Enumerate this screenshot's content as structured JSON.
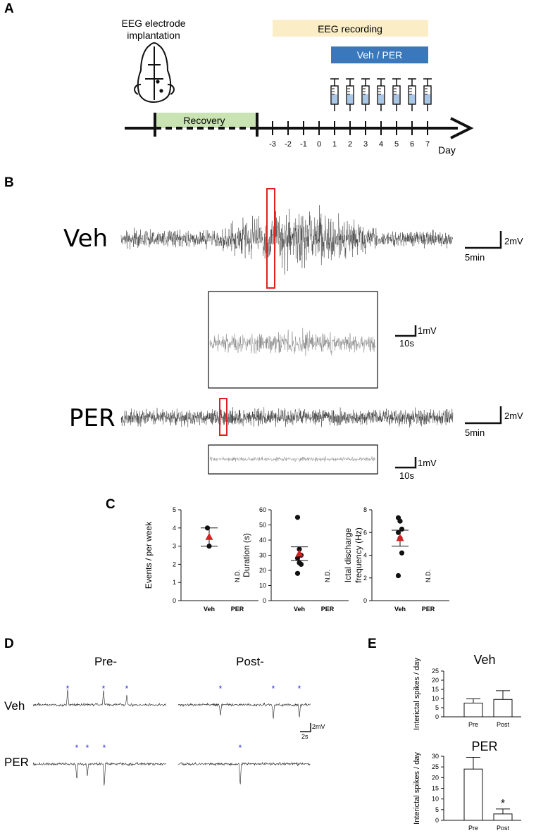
{
  "panel_labels": {
    "a": "A",
    "b": "B",
    "c": "C",
    "d": "D",
    "e": "E"
  },
  "panel_a": {
    "implant_label_line1": "EEG electrode",
    "implant_label_line2": "implantation",
    "recovery_label": "Recovery",
    "recording_label": "EEG recording",
    "treatment_label": "Veh / PER",
    "day_ticks": [
      "-3",
      "-2",
      "-1",
      "0",
      "1",
      "2",
      "3",
      "4",
      "5",
      "6",
      "7"
    ],
    "day_label": "Day",
    "colors": {
      "recovery": "#c9e3b3",
      "recording": "#fbeec7",
      "treatment": "#3b78bb",
      "syringe_fluid": "#a9c8e8"
    }
  },
  "panel_b": {
    "veh_label": "Veh",
    "per_label": "PER",
    "scale_2mv": "2mV",
    "scale_5min": "5min",
    "scale_1mv": "1mV",
    "scale_10s": "10s",
    "highlight_color": "#e02020"
  },
  "panel_c": {
    "nd_label": "N.D.",
    "categories": [
      "Veh",
      "PER"
    ]
  },
  "panel_d": {
    "pre_label": "Pre-",
    "post_label": "Post-",
    "veh_label": "Veh",
    "per_label": "PER",
    "scale_2mv": "2mV",
    "scale_2s": "2s",
    "spike_marker": "*",
    "spike_marker_color": "#2a2ae0"
  },
  "panel_e": {
    "significance_marker": "*"
  },
  "chart_data": [
    {
      "type": "scatter",
      "title": "",
      "ylabel": "Events / per week",
      "ylim": [
        0,
        5
      ],
      "yticks": [
        "0",
        "1",
        "2",
        "3",
        "4",
        "5"
      ],
      "categories": [
        "Veh",
        "PER"
      ],
      "points": {
        "Veh": [
          4,
          3
        ],
        "PER": []
      },
      "mean": {
        "Veh": 3.5
      },
      "sem": {
        "Veh": [
          3.0,
          4.0
        ]
      },
      "annotation": "N.D."
    },
    {
      "type": "scatter",
      "title": "",
      "ylabel": "Duration (s)",
      "ylim": [
        0,
        60
      ],
      "yticks": [
        "0",
        "10",
        "20",
        "30",
        "40",
        "50",
        "60"
      ],
      "categories": [
        "Veh",
        "PER"
      ],
      "points": {
        "Veh": [
          55,
          34,
          30,
          28,
          25,
          24,
          18
        ],
        "PER": []
      },
      "mean": {
        "Veh": 31
      },
      "sem": {
        "Veh": [
          26.5,
          35.5
        ]
      },
      "annotation": "N.D."
    },
    {
      "type": "scatter",
      "title": "",
      "ylabel": "Ictal discharge frequency (Hz)",
      "ylim": [
        0,
        8
      ],
      "yticks": [
        "0",
        "2",
        "4",
        "6",
        "8"
      ],
      "categories": [
        "Veh",
        "PER"
      ],
      "points": {
        "Veh": [
          7.3,
          7.0,
          6.3,
          6.0,
          5.5,
          4.2,
          2.2
        ],
        "PER": []
      },
      "mean": {
        "Veh": 5.5
      },
      "sem": {
        "Veh": [
          4.8,
          6.2
        ]
      },
      "annotation": "N.D."
    },
    {
      "type": "bar",
      "title": "Veh",
      "ylabel": "Interictal spikes / day",
      "ylim": [
        0,
        25
      ],
      "yticks": [
        "0",
        "5",
        "10",
        "15",
        "20",
        "25"
      ],
      "categories": [
        "Pre",
        "Post"
      ],
      "values": [
        7.5,
        9.5
      ],
      "errors": [
        2.3,
        4.8
      ]
    },
    {
      "type": "bar",
      "title": "PER",
      "ylabel": "Interictal spikes / day",
      "ylim": [
        0,
        30
      ],
      "yticks": [
        "0",
        "5",
        "10",
        "15",
        "20",
        "25",
        "30"
      ],
      "categories": [
        "Pre",
        "Post"
      ],
      "values": [
        24,
        3
      ],
      "errors": [
        5.5,
        2.3
      ]
    }
  ]
}
